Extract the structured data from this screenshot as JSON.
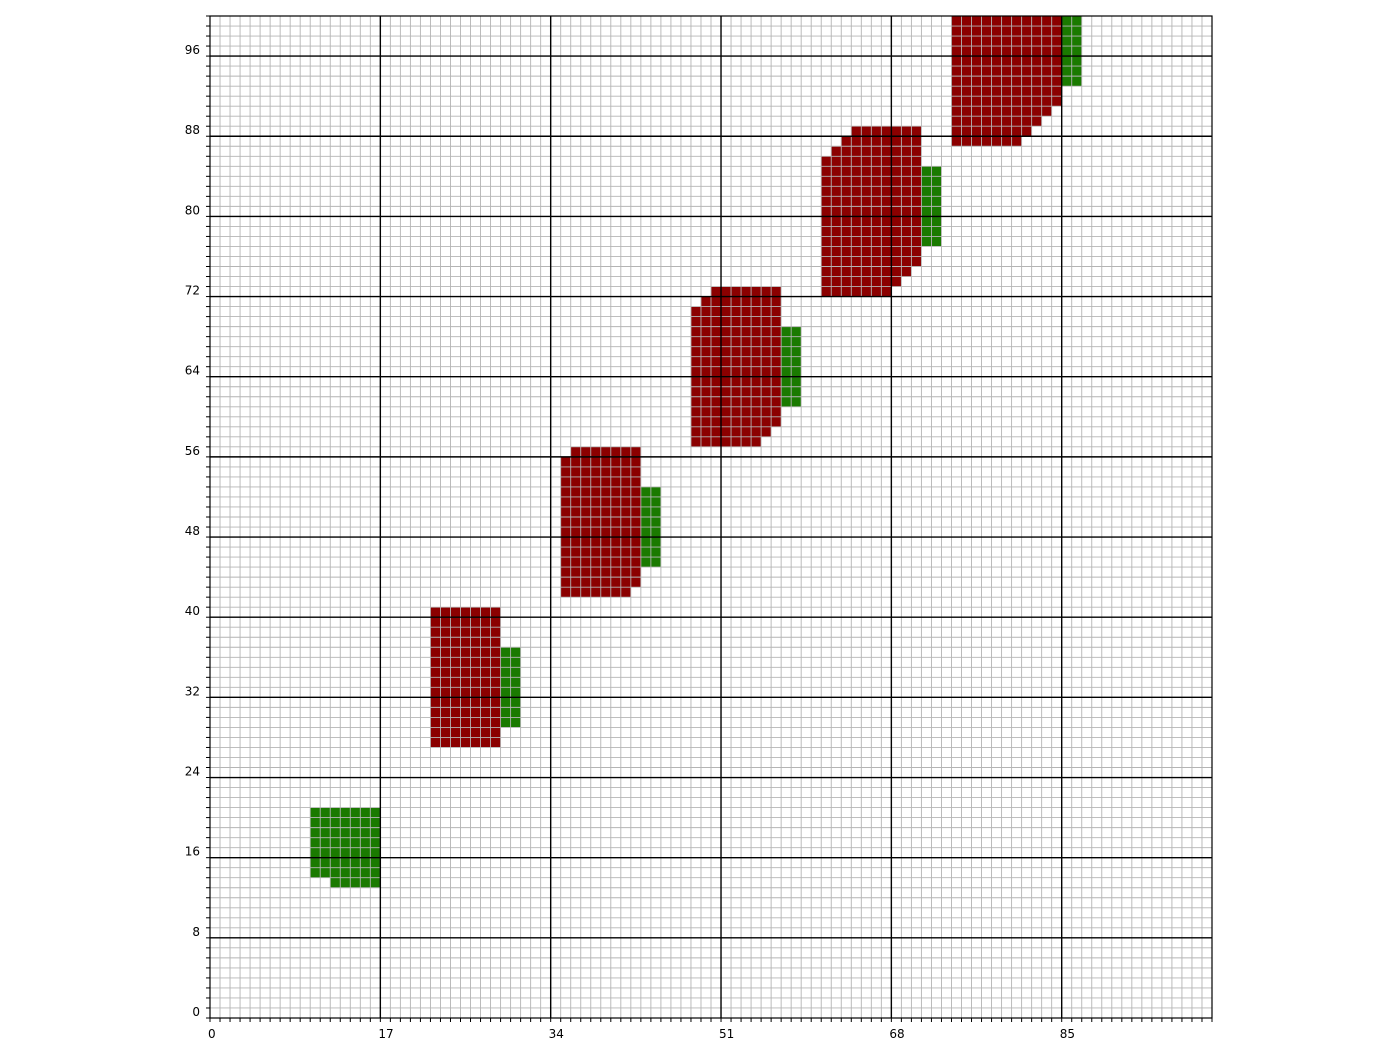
{
  "chart_data": {
    "type": "heatmap",
    "xlim": [
      0,
      100
    ],
    "ylim": [
      0,
      100
    ],
    "x_ticks": [
      "0",
      "17",
      "34",
      "51",
      "68",
      "85"
    ],
    "y_ticks": [
      "0",
      "8",
      "16",
      "24",
      "32",
      "40",
      "48",
      "56",
      "64",
      "72",
      "80",
      "88",
      "96"
    ],
    "grid": {
      "minor_step": 1,
      "x_major_step": 17,
      "y_major_step": 8
    },
    "colors": {
      "red": "#8b0000",
      "green": "#1a7a00",
      "minor_grid": "#b4b4b4",
      "major_grid": "#000000"
    },
    "cells": {
      "green": [
        {
          "x": [
            10,
            12
          ],
          "y": [
            14,
            21
          ]
        },
        {
          "x": [
            12,
            17
          ],
          "y": [
            13,
            21
          ]
        },
        {
          "x": [
            29,
            31
          ],
          "y": [
            29,
            37
          ]
        },
        {
          "x": [
            43,
            45
          ],
          "y": [
            45,
            53
          ]
        },
        {
          "x": [
            57,
            59
          ],
          "y": [
            61,
            69
          ]
        },
        {
          "x": [
            71,
            73
          ],
          "y": [
            77,
            85
          ]
        },
        {
          "x": [
            85,
            87
          ],
          "y": [
            93,
            100
          ]
        }
      ],
      "red": [
        {
          "x": [
            22,
            29
          ],
          "y": [
            27,
            41
          ]
        },
        {
          "x": [
            35,
            36
          ],
          "y": [
            42,
            56
          ]
        },
        {
          "x": [
            36,
            42
          ],
          "y": [
            42,
            57
          ]
        },
        {
          "x": [
            42,
            43
          ],
          "y": [
            43,
            57
          ]
        },
        {
          "x": [
            48,
            49
          ],
          "y": [
            57,
            71
          ]
        },
        {
          "x": [
            49,
            50
          ],
          "y": [
            57,
            72
          ]
        },
        {
          "x": [
            50,
            55
          ],
          "y": [
            57,
            73
          ]
        },
        {
          "x": [
            55,
            56
          ],
          "y": [
            58,
            73
          ]
        },
        {
          "x": [
            56,
            57
          ],
          "y": [
            59,
            73
          ]
        },
        {
          "x": [
            61,
            62
          ],
          "y": [
            72,
            86
          ]
        },
        {
          "x": [
            62,
            63
          ],
          "y": [
            72,
            87
          ]
        },
        {
          "x": [
            63,
            64
          ],
          "y": [
            72,
            88
          ]
        },
        {
          "x": [
            64,
            68
          ],
          "y": [
            72,
            89
          ]
        },
        {
          "x": [
            68,
            69
          ],
          "y": [
            73,
            89
          ]
        },
        {
          "x": [
            69,
            70
          ],
          "y": [
            74,
            89
          ]
        },
        {
          "x": [
            70,
            71
          ],
          "y": [
            75,
            89
          ]
        },
        {
          "x": [
            74,
            81
          ],
          "y": [
            87,
            100
          ]
        },
        {
          "x": [
            81,
            82
          ],
          "y": [
            88,
            100
          ]
        },
        {
          "x": [
            82,
            83
          ],
          "y": [
            89,
            100
          ]
        },
        {
          "x": [
            83,
            84
          ],
          "y": [
            90,
            100
          ]
        },
        {
          "x": [
            84,
            85
          ],
          "y": [
            91,
            100
          ]
        }
      ]
    }
  }
}
